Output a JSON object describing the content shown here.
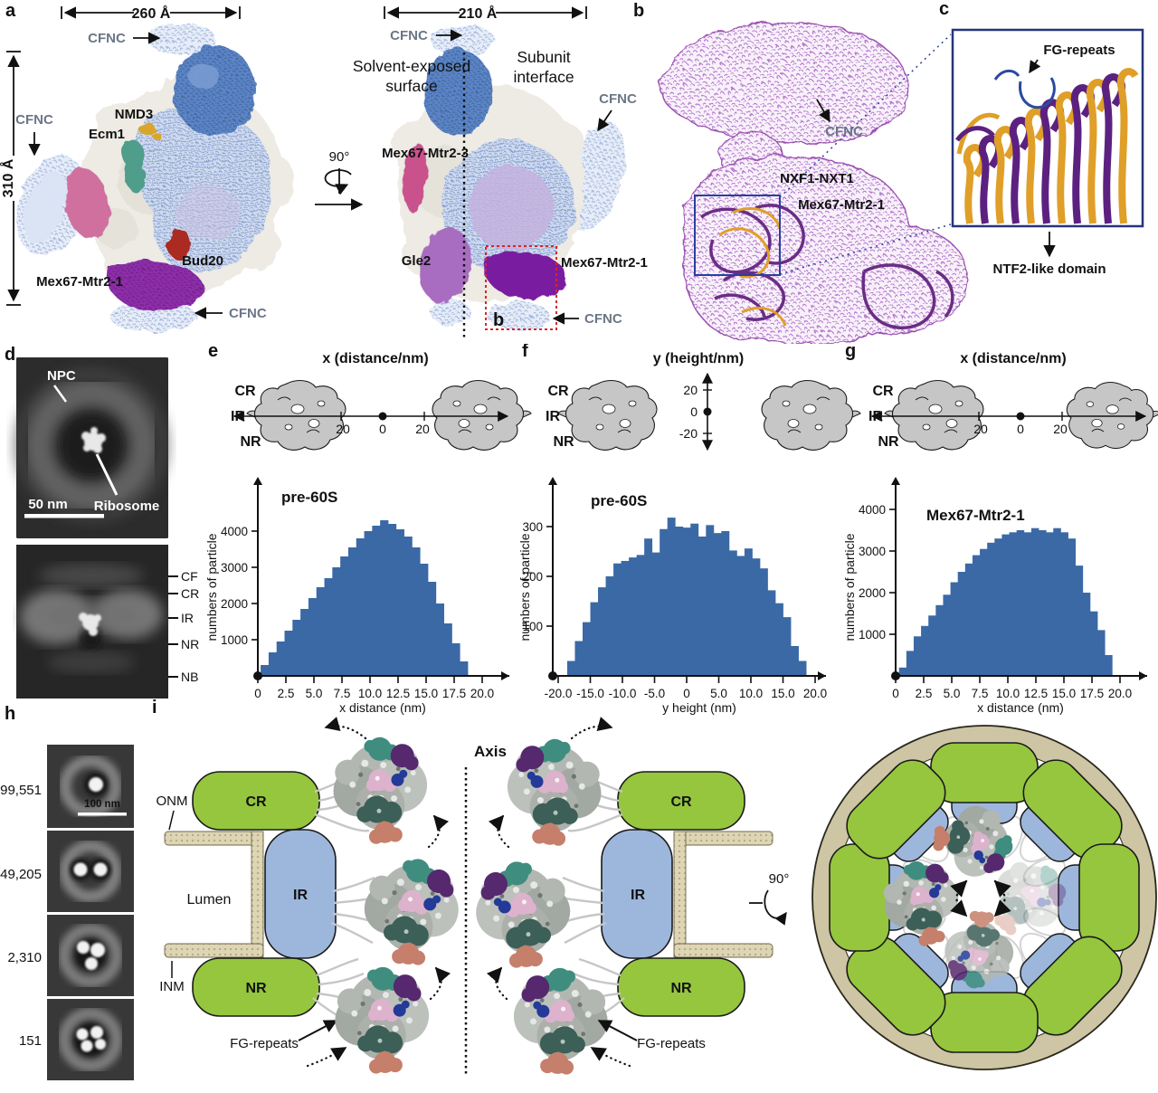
{
  "figure": {
    "panel_labels": {
      "a": "a",
      "b": "b",
      "c": "c",
      "d": "d",
      "e": "e",
      "f": "f",
      "g": "g",
      "h": "h",
      "i": "i"
    },
    "a": {
      "dim_width_left": "260 Å",
      "dim_width_right": "210 Å",
      "dim_height": "310 Å",
      "cfnc": "CFNC",
      "nmd3": "NMD3",
      "ecm1": "Ecm1",
      "bud20": "Bud20",
      "mex67_mtr2_1": "Mex67-Mtr2-1",
      "mex67_mtr2_3": "Mex67-Mtr2-3",
      "gle2": "Gle2",
      "solvent_line1": "Solvent-exposed",
      "solvent_line2": "surface",
      "subunit_line1": "Subunit",
      "subunit_line2": "interface",
      "rotation": "90°",
      "inset_ref": "b"
    },
    "b": {
      "cfnc": "CFNC",
      "nxf1_nxt1": "NXF1-NXT1",
      "mex67_mtr2_1": "Mex67-Mtr2-1"
    },
    "c": {
      "fg_repeats": "FG-repeats",
      "ntf2": "NTF2-like domain"
    },
    "d": {
      "npc": "NPC",
      "ribosome": "Ribosome",
      "scale_bar": "50 nm",
      "side_labels": [
        "CF",
        "CR",
        "IR",
        "NR",
        "NB"
      ]
    },
    "e_header": {
      "title": "x (distance/nm)",
      "cr": "CR",
      "ir": "IR",
      "nr": "NR",
      "tick_left": "20",
      "tick_mid": "0",
      "tick_right": "20"
    },
    "f_header": {
      "title": "y (height/nm)",
      "cr": "CR",
      "ir": "IR",
      "nr": "NR",
      "tick_top": "20",
      "tick_mid": "0",
      "tick_bottom": "-20"
    },
    "g_header": {
      "title": "x (distance/nm)",
      "cr": "CR",
      "ir": "IR",
      "nr": "NR",
      "tick_left": "20",
      "tick_mid": "0",
      "tick_right": "20"
    },
    "h": {
      "counts": [
        "99,551",
        "49,205",
        "2,310",
        "151"
      ],
      "scale_bar": "100 nm"
    },
    "i": {
      "onm": "ONM",
      "inm": "INM",
      "lumen": "Lumen",
      "cr": "CR",
      "ir": "IR",
      "nr": "NR",
      "fg_repeats": "FG-repeats",
      "axis": "Axis",
      "rotation": "90°"
    }
  },
  "chart_data": [
    {
      "id": "chart-e",
      "type": "bar",
      "title": "pre-60S",
      "ylabel": "numbers of particle",
      "xlabel": "x distance (nm)",
      "yticks": [
        1000,
        2000,
        3000,
        4000
      ],
      "xticks": [
        0,
        2.5,
        5,
        7.5,
        10,
        12.5,
        15,
        17.5,
        20
      ],
      "xtick_labels": [
        "0",
        "2.5",
        "5.0",
        "7.5",
        "10.0",
        "12.5",
        "15.0",
        "17.5",
        "20.0"
      ],
      "xlim": [
        0,
        21.5
      ],
      "ylim": [
        0,
        4600
      ],
      "bin_start": 0.25,
      "bin_width": 0.71,
      "bar_color": "#3b69a5",
      "values": [
        300,
        650,
        950,
        1250,
        1550,
        1850,
        2150,
        2450,
        2700,
        3000,
        3300,
        3550,
        3800,
        4000,
        4150,
        4300,
        4200,
        4050,
        3850,
        3550,
        3100,
        2600,
        2000,
        1450,
        900,
        400
      ]
    },
    {
      "id": "chart-f",
      "type": "bar",
      "title": "pre-60S",
      "ylabel": "numbers of particle",
      "xlabel": "y height (nm)",
      "yticks": [
        100,
        200,
        300
      ],
      "xticks": [
        -20,
        -15,
        -10,
        -5,
        0,
        5,
        10,
        15,
        20
      ],
      "xtick_labels": [
        "-20.0",
        "-15.0",
        "-10.0",
        "-5.0",
        "0",
        "5.0",
        "10.0",
        "15.0",
        "20.0"
      ],
      "xlim": [
        -21.5,
        21.5
      ],
      "ylim": [
        0,
        360
      ],
      "bin_start": -18.6,
      "bin_width": 1.2,
      "bar_color": "#3b69a5",
      "values": [
        30,
        70,
        108,
        148,
        178,
        200,
        226,
        231,
        238,
        243,
        276,
        248,
        295,
        318,
        300,
        298,
        306,
        280,
        303,
        287,
        291,
        252,
        241,
        256,
        236,
        216,
        172,
        146,
        118,
        60,
        30
      ]
    },
    {
      "id": "chart-g",
      "type": "bar",
      "title": "Mex67-Mtr2-1",
      "ylabel": "numbers of particle",
      "xlabel": "x distance (nm)",
      "yticks": [
        1000,
        2000,
        3000,
        4000
      ],
      "xticks": [
        0,
        2.5,
        5,
        7.5,
        10,
        12.5,
        15,
        17.5,
        20
      ],
      "xtick_labels": [
        "0",
        "2.5",
        "5.0",
        "7.5",
        "10.0",
        "12.5",
        "15.0",
        "17.5",
        "20.0"
      ],
      "xlim": [
        0,
        21.5
      ],
      "ylim": [
        0,
        4300
      ],
      "bin_start": 0.3,
      "bin_width": 0.655,
      "bar_color": "#3b69a5",
      "values": [
        200,
        600,
        950,
        1200,
        1450,
        1700,
        1950,
        2250,
        2500,
        2700,
        2900,
        3050,
        3200,
        3300,
        3400,
        3450,
        3500,
        3450,
        3550,
        3500,
        3450,
        3550,
        3450,
        3300,
        2650,
        2000,
        1550,
        1100,
        500
      ]
    }
  ],
  "colors": {
    "bar": "#3b69a5",
    "npc_ring_green": "#95c63e",
    "npc_ring_blue": "#9db7dc",
    "membrane": "#ddd5b4",
    "membrane_ring": "#cdc5a4",
    "nxf1_gold": "#a08828",
    "mex67_purple": "#5c2373",
    "cfnc_gray": "#6b7686",
    "nmd3_gold": "#a89a30",
    "bud20_red": "#7a2525",
    "gle2_purple": "#8f6aa8",
    "mex67_mtr2_3_pink": "#b03060",
    "fg_blue": "#2a4aa0"
  }
}
